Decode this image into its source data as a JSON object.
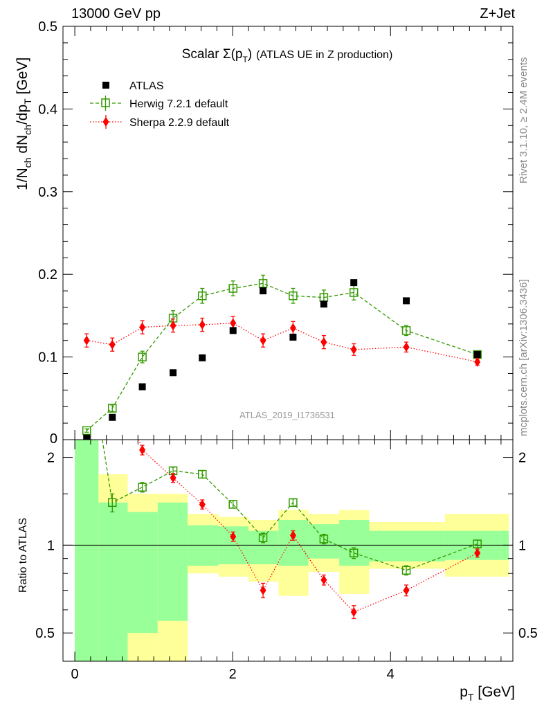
{
  "header": {
    "left": "13000 GeV pp",
    "right": "Z+Jet"
  },
  "side": {
    "top": "Rivet 3.1.10, ≥ 2.4M events",
    "bottom": "mcplots.cern.ch [arXiv:1306.3436]"
  },
  "chart_data": {
    "type": "scatter",
    "title_main": "Scalar Σ(p",
    "title_sub": "T",
    "title_close": ")",
    "title_rest": "(ATLAS UE in Z production)",
    "analysis": "ATLAS_2019_I1736531",
    "ylabel": "1/N ch dN ch/dp T [GeV]",
    "ylabel_parts": [
      "1/N",
      "ch",
      " dN",
      "ch",
      "/dp",
      "T",
      " [GeV]"
    ],
    "xlabel_main": "p",
    "xlabel_sub": "T",
    "xlabel_rest": " [GeV]",
    "ratio_label": "Ratio to ATLAS",
    "xlim": [
      -0.15,
      5.55
    ],
    "ylim": [
      0,
      0.5
    ],
    "ratio_ylim": [
      0.4,
      2.3
    ],
    "xticks": [
      "0",
      "2",
      "4"
    ],
    "yticks": [
      "0.1",
      "0.2",
      "0.3",
      "0.4",
      "0.5"
    ],
    "ratio_ticks": [
      "0.5",
      "1",
      "2"
    ],
    "x": [
      0.15,
      0.475,
      0.855,
      1.245,
      1.615,
      2.005,
      2.385,
      2.765,
      3.155,
      3.535,
      4.2,
      5.1
    ],
    "legend": [
      "ATLAS",
      "Herwig 7.2.1 default",
      "Sherpa 2.2.9 default"
    ],
    "series": [
      {
        "name": "ATLAS",
        "color": "#000000",
        "values": [
          0.002,
          0.027,
          0.064,
          0.081,
          0.099,
          0.132,
          0.18,
          0.124,
          0.164,
          0.19,
          0.168,
          0.103
        ]
      },
      {
        "name": "Herwig 7.2.1 default",
        "color": "#339900",
        "values": [
          0.011,
          0.038,
          0.1,
          0.147,
          0.174,
          0.183,
          0.189,
          0.174,
          0.172,
          0.178,
          0.132,
          0.103
        ],
        "errors": [
          0.002,
          0.004,
          0.007,
          0.009,
          0.009,
          0.009,
          0.01,
          0.009,
          0.009,
          0.009,
          0.006,
          0.003
        ],
        "ratio": [
          5.0,
          1.4,
          1.58,
          1.8,
          1.75,
          1.38,
          1.06,
          1.4,
          1.05,
          0.94,
          0.82,
          1.01
        ],
        "ratio_errors": [
          0.1,
          0.1,
          0.06,
          0.05,
          0.05,
          0.04,
          0.04,
          0.04,
          0.04,
          0.04,
          0.03,
          0.03
        ]
      },
      {
        "name": "Sherpa 2.2.9 default",
        "color": "#ff0000",
        "values": [
          0.12,
          0.115,
          0.136,
          0.138,
          0.139,
          0.141,
          0.12,
          0.135,
          0.118,
          0.109,
          0.112,
          0.094
        ],
        "errors": [
          0.008,
          0.008,
          0.008,
          0.008,
          0.008,
          0.008,
          0.008,
          0.008,
          0.008,
          0.007,
          0.006,
          0.004
        ],
        "ratio": [
          60.0,
          4.3,
          2.12,
          1.7,
          1.38,
          1.07,
          0.7,
          1.08,
          0.76,
          0.59,
          0.7,
          0.94
        ],
        "ratio_errors": [
          1.0,
          0.1,
          0.08,
          0.06,
          0.05,
          0.04,
          0.04,
          0.04,
          0.03,
          0.03,
          0.03,
          0.03
        ]
      }
    ],
    "bands": {
      "edges": [
        0.0,
        0.3,
        0.67,
        1.05,
        1.43,
        1.82,
        2.2,
        2.58,
        2.96,
        3.35,
        3.73,
        4.69,
        5.5
      ],
      "green_up": [
        3.0,
        1.4,
        1.3,
        1.4,
        1.17,
        1.16,
        1.12,
        1.22,
        1.18,
        1.22,
        1.12,
        1.12
      ],
      "green_down": [
        0.3,
        0.4,
        0.5,
        0.55,
        0.85,
        0.86,
        0.86,
        0.85,
        0.9,
        0.85,
        0.88,
        0.89
      ],
      "yellow_up": [
        3.0,
        1.75,
        1.5,
        1.5,
        1.28,
        1.25,
        1.22,
        1.32,
        1.28,
        1.32,
        1.2,
        1.28
      ],
      "yellow_down": [
        0.3,
        0.3,
        0.3,
        0.3,
        0.8,
        0.78,
        0.75,
        0.67,
        0.81,
        0.68,
        0.83,
        0.78
      ]
    }
  }
}
